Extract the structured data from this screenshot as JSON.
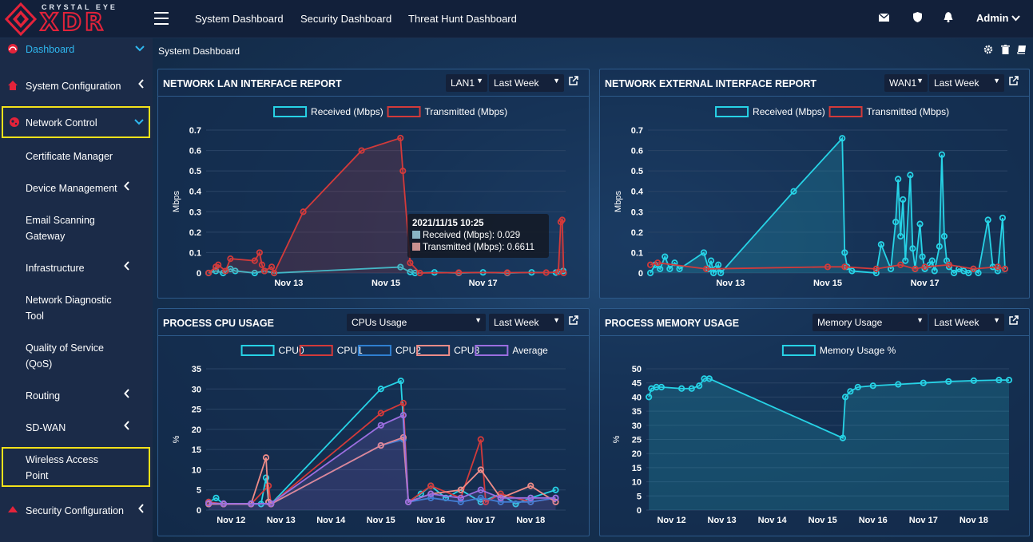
{
  "brand": {
    "sub": "CRYSTAL EYE",
    "main": "XDR"
  },
  "topnav": [
    "System Dashboard",
    "Security Dashboard",
    "Threat Hunt Dashboard"
  ],
  "user": {
    "name": "Admin"
  },
  "sidebar": {
    "dashboard": "Dashboard",
    "system_configuration": "System Configuration",
    "network_control": "Network Control",
    "certificate_manager": "Certificate Manager",
    "device_management": "Device Management",
    "email_scanning_1": "Email Scanning",
    "email_scanning_2": "Gateway",
    "infrastructure": "Infrastructure",
    "network_diagnostic_1": "Network Diagnostic",
    "network_diagnostic_2": "Tool",
    "qos_1": "Quality of Service",
    "qos_2": "(QoS)",
    "routing": "Routing",
    "sdwan": "SD-WAN",
    "wireless_1": "Wireless Access",
    "wireless_2": "Point",
    "security_configuration": "Security Configuration"
  },
  "page": {
    "title": "System Dashboard"
  },
  "panels": {
    "lan": {
      "title": "NETWORK LAN INTERFACE REPORT",
      "iface": "LAN1",
      "range": "Last Week"
    },
    "wan": {
      "title": "NETWORK EXTERNAL INTERFACE REPORT",
      "iface": "WAN1",
      "range": "Last Week"
    },
    "cpu": {
      "title": "PROCESS CPU USAGE",
      "select": "CPUs Usage",
      "range": "Last Week"
    },
    "mem": {
      "title": "PROCESS MEMORY USAGE",
      "select": "Memory Usage",
      "range": "Last Week"
    }
  },
  "colors": {
    "cyan": "#27d3e6",
    "red": "#d33a3a",
    "blue": "#2f7fd0",
    "salmon": "#ee8c88",
    "purple": "#9b6ee0"
  },
  "tooltip": {
    "date": "2021/11/15 10:25",
    "received": "Received (Mbps): 0.029",
    "transmitted": "Transmitted (Mbps): 0.6611"
  },
  "chart_data": [
    {
      "type": "line",
      "ylabel": "Mbps",
      "ylim": [
        0,
        0.7
      ],
      "yticks": [
        "0",
        "0.1",
        "0.2",
        "0.3",
        "0.4",
        "0.5",
        "0.6",
        "0.7"
      ],
      "xticks": [
        "Nov 13",
        "Nov 15",
        "Nov 17"
      ],
      "xlim": [
        11.3,
        18.7
      ],
      "legend": [
        "Received (Mbps)",
        "Transmitted (Mbps)"
      ],
      "series": [
        {
          "name": "Received (Mbps)",
          "color": "#27d3e6",
          "fill": false,
          "x": [
            11.35,
            11.5,
            11.65,
            11.8,
            11.9,
            12.3,
            12.5,
            12.7,
            15.3,
            15.5,
            15.6,
            16.0,
            16.5,
            17.0,
            17.5,
            18.0,
            18.5,
            18.65
          ],
          "y": [
            0,
            0.01,
            0,
            0.02,
            0.01,
            0,
            0.01,
            0,
            0.029,
            0.005,
            0,
            0.003,
            0,
            0.003,
            0,
            0.003,
            0.002,
            0.01
          ]
        },
        {
          "name": "Transmitted (Mbps)",
          "color": "#d33a3a",
          "fill": true,
          "x": [
            11.35,
            11.5,
            11.55,
            11.7,
            11.8,
            12.3,
            12.4,
            12.45,
            12.5,
            12.65,
            12.7,
            13.3,
            14.5,
            15.3,
            15.35,
            15.5,
            15.7,
            16.5,
            17.5,
            18.3,
            18.55,
            18.6,
            18.63,
            18.66
          ],
          "y": [
            0,
            0.03,
            0.04,
            0.01,
            0.07,
            0.06,
            0.1,
            0.04,
            0.01,
            0.03,
            0,
            0.3,
            0.6,
            0.6611,
            0.5,
            0.05,
            0,
            0.002,
            0.002,
            0.002,
            0.005,
            0.25,
            0.26,
            0
          ]
        }
      ]
    },
    {
      "type": "line",
      "ylabel": "Mbps",
      "ylim": [
        0,
        0.7
      ],
      "yticks": [
        "0",
        "0.1",
        "0.2",
        "0.3",
        "0.4",
        "0.5",
        "0.6",
        "0.7"
      ],
      "xticks": [
        "Nov 13",
        "Nov 15",
        "Nov 17"
      ],
      "xlim": [
        11.3,
        18.7
      ],
      "legend": [
        "Received (Mbps)",
        "Transmitted (Mbps)"
      ],
      "series": [
        {
          "name": "Received (Mbps)",
          "color": "#27d3e6",
          "fill": true,
          "x": [
            11.35,
            11.45,
            11.55,
            11.65,
            11.75,
            11.85,
            11.95,
            12.45,
            12.55,
            12.6,
            12.65,
            12.7,
            12.75,
            12.8,
            14.3,
            15.3,
            15.35,
            15.4,
            15.5,
            16.0,
            16.1,
            16.3,
            16.4,
            16.45,
            16.5,
            16.55,
            16.6,
            16.7,
            16.75,
            16.8,
            16.9,
            16.95,
            17.0,
            17.1,
            17.15,
            17.2,
            17.3,
            17.35,
            17.4,
            17.45,
            17.5,
            17.6,
            17.7,
            17.8,
            17.9,
            18.0,
            18.1,
            18.3,
            18.4,
            18.5,
            18.6,
            18.65
          ],
          "y": [
            0,
            0.04,
            0.02,
            0.08,
            0.02,
            0.05,
            0.02,
            0.1,
            0.02,
            0.06,
            0.0,
            0.02,
            0.04,
            0.0,
            0.4,
            0.66,
            0.1,
            0.03,
            0.01,
            0.0,
            0.14,
            0.02,
            0.25,
            0.46,
            0.18,
            0.36,
            0.06,
            0.48,
            0.12,
            0.02,
            0.24,
            0.08,
            0.02,
            0.04,
            0.06,
            0.01,
            0.13,
            0.58,
            0.18,
            0.06,
            0.03,
            0.0,
            0.02,
            0.01,
            0.0,
            0.02,
            0.0,
            0.26,
            0.03,
            0.01,
            0.27,
            0.02
          ]
        },
        {
          "name": "Transmitted (Mbps)",
          "color": "#d33a3a",
          "fill": false,
          "x": [
            11.35,
            11.5,
            12.5,
            15.0,
            15.35,
            16.0,
            16.5,
            16.8,
            17.0,
            17.5,
            18.0,
            18.5,
            18.65
          ],
          "y": [
            0.04,
            0.05,
            0.02,
            0.03,
            0.03,
            0.02,
            0.04,
            0.02,
            0.03,
            0.04,
            0.02,
            0.03,
            0.02
          ]
        }
      ]
    },
    {
      "type": "line",
      "ylabel": "%",
      "ylim": [
        0,
        35
      ],
      "yticks": [
        "0",
        "5",
        "10",
        "15",
        "20",
        "25",
        "30",
        "35"
      ],
      "xticks": [
        "Nov 12",
        "Nov 13",
        "Nov 14",
        "Nov 15",
        "Nov 16",
        "Nov 17",
        "Nov 18"
      ],
      "xlim": [
        11.5,
        18.7
      ],
      "legend": [
        "CPU0",
        "CPU1",
        "CPU2",
        "CPU3",
        "Average"
      ],
      "series": [
        {
          "name": "CPU0",
          "color": "#27d3e6",
          "x": [
            11.55,
            11.7,
            11.85,
            12.4,
            12.6,
            12.7,
            12.75,
            12.8,
            15.0,
            15.4,
            15.55,
            15.8,
            16.0,
            16.3,
            16.6,
            17.0,
            17.4,
            17.7,
            18.0,
            18.5
          ],
          "y": [
            2,
            3,
            1.5,
            1.5,
            1.5,
            8,
            2,
            1.5,
            30,
            32,
            2,
            4,
            6,
            3,
            5,
            2,
            4,
            1.5,
            3,
            5
          ]
        },
        {
          "name": "CPU1",
          "color": "#d33a3a",
          "x": [
            11.55,
            11.85,
            12.4,
            12.75,
            12.8,
            15.0,
            15.45,
            15.55,
            16.0,
            16.6,
            17.0,
            17.1,
            17.4,
            18.0,
            18.5
          ],
          "y": [
            2,
            1.5,
            1.5,
            6,
            1.5,
            24,
            26.5,
            2,
            6,
            3,
            17.5,
            2,
            4,
            2,
            3
          ]
        },
        {
          "name": "CPU2",
          "color": "#2f7fd0",
          "x": [
            11.55,
            11.85,
            12.4,
            12.8,
            15.0,
            15.45,
            15.55,
            16.0,
            16.6,
            17.0,
            17.4,
            18.0,
            18.5
          ],
          "y": [
            1.5,
            1.5,
            1.5,
            1.5,
            16,
            17.5,
            2,
            3,
            2,
            3,
            2,
            2,
            3
          ]
        },
        {
          "name": "CPU3",
          "color": "#ee8c88",
          "x": [
            11.55,
            11.85,
            12.4,
            12.7,
            12.75,
            12.8,
            15.0,
            15.45,
            15.55,
            16.0,
            16.6,
            17.0,
            17.4,
            18.0,
            18.5
          ],
          "y": [
            1.5,
            1.5,
            1.5,
            13,
            2,
            1.5,
            16,
            18,
            2,
            4,
            5,
            10,
            3,
            6,
            2
          ]
        },
        {
          "name": "Average",
          "color": "#9b6ee0",
          "fill": true,
          "x": [
            11.55,
            11.85,
            12.4,
            12.8,
            15.0,
            15.45,
            15.55,
            16.0,
            16.6,
            17.0,
            17.4,
            18.0,
            18.5
          ],
          "y": [
            1.7,
            1.6,
            1.6,
            1.6,
            21,
            23.5,
            2,
            4,
            3,
            5,
            3,
            3,
            3
          ]
        }
      ]
    },
    {
      "type": "area",
      "ylabel": "%",
      "ylim": [
        0,
        50
      ],
      "yticks": [
        "0",
        "5",
        "10",
        "15",
        "20",
        "25",
        "30",
        "35",
        "40",
        "45",
        "50"
      ],
      "xticks": [
        "Nov 12",
        "Nov 13",
        "Nov 14",
        "Nov 15",
        "Nov 16",
        "Nov 17",
        "Nov 18"
      ],
      "xlim": [
        11.5,
        18.7
      ],
      "legend": [
        "Memory Usage %"
      ],
      "series": [
        {
          "name": "Memory Usage %",
          "color": "#27d3e6",
          "fill": true,
          "x": [
            11.55,
            11.6,
            11.7,
            11.8,
            12.2,
            12.4,
            12.55,
            12.65,
            12.75,
            15.4,
            15.45,
            15.55,
            15.7,
            16.0,
            16.5,
            17.0,
            17.5,
            18.0,
            18.5,
            18.7
          ],
          "y": [
            40,
            43,
            43.5,
            43.5,
            43,
            43,
            44,
            46.5,
            46.5,
            25.5,
            40,
            42,
            43.5,
            44,
            44.5,
            45,
            45.5,
            45.8,
            46,
            46
          ]
        }
      ]
    }
  ]
}
